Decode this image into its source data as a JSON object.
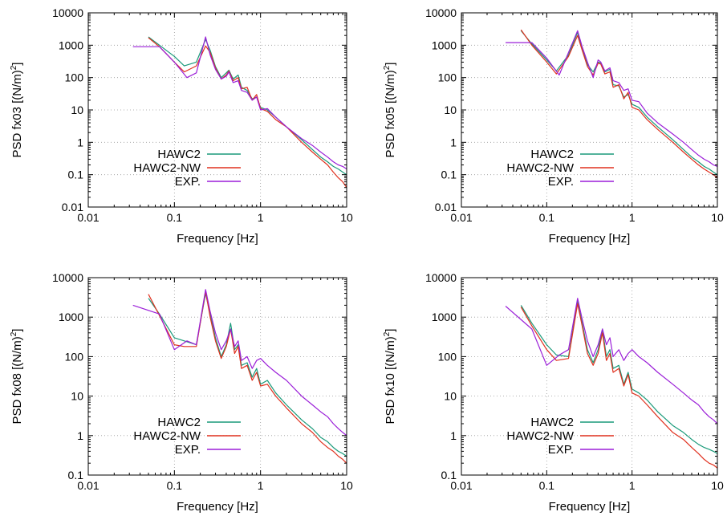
{
  "figure": {
    "xlabel": "Frequency [Hz]"
  },
  "colors": {
    "HAWC2": "#1a9a7a",
    "HAWC2-NW": "#e0301e",
    "EXP.": "#9b1fd8"
  },
  "chart_data": [
    {
      "type": "line",
      "scale": "log-log",
      "grid": true,
      "legend_position": "bottom-left",
      "xlabel": "Frequency [Hz]",
      "ylabel_prefix": "PSD fx03 [(N/m)",
      "ylabel_sup": "2",
      "ylabel_suffix": "]",
      "xlim": [
        0.01,
        10
      ],
      "ylim": [
        0.01,
        10000
      ],
      "xticks": [
        "0.01",
        "0.1",
        "1",
        "10"
      ],
      "yticks": [
        "0.01",
        "0.1",
        "1",
        "10",
        "100",
        "1000",
        "10000"
      ],
      "series": [
        {
          "name": "HAWC2",
          "color": "#1a9a7a",
          "x": [
            0.05,
            0.067,
            0.1,
            0.13,
            0.18,
            0.23,
            0.26,
            0.3,
            0.35,
            0.4,
            0.43,
            0.48,
            0.55,
            0.6,
            0.7,
            0.8,
            0.9,
            1.0,
            1.2,
            1.5,
            2,
            3,
            4,
            5,
            6,
            7,
            8,
            9,
            10
          ],
          "y": [
            1800,
            1000,
            450,
            230,
            300,
            1500,
            700,
            220,
            100,
            140,
            170,
            90,
            120,
            50,
            40,
            22,
            25,
            12,
            10,
            6,
            3,
            1.2,
            0.6,
            0.35,
            0.25,
            0.18,
            0.15,
            0.12,
            0.1
          ]
        },
        {
          "name": "HAWC2-NW",
          "color": "#e0301e",
          "x": [
            0.05,
            0.067,
            0.1,
            0.13,
            0.18,
            0.23,
            0.26,
            0.3,
            0.35,
            0.4,
            0.43,
            0.48,
            0.55,
            0.6,
            0.7,
            0.8,
            0.9,
            1.0,
            1.2,
            1.5,
            2,
            3,
            4,
            5,
            6,
            7,
            8,
            9,
            10
          ],
          "y": [
            1700,
            900,
            300,
            150,
            230,
            950,
            600,
            200,
            90,
            120,
            160,
            80,
            100,
            45,
            50,
            20,
            30,
            11,
            9,
            5,
            3,
            1,
            0.5,
            0.3,
            0.2,
            0.12,
            0.08,
            0.06,
            0.04
          ]
        },
        {
          "name": "EXP.",
          "color": "#9b1fd8",
          "x": [
            0.033,
            0.067,
            0.1,
            0.14,
            0.18,
            0.23,
            0.26,
            0.3,
            0.35,
            0.4,
            0.43,
            0.48,
            0.55,
            0.6,
            0.7,
            0.8,
            0.9,
            1.0,
            1.2,
            1.5,
            2,
            3,
            4,
            5,
            6,
            7,
            8,
            9,
            10
          ],
          "y": [
            900,
            900,
            300,
            100,
            140,
            1800,
            500,
            180,
            90,
            110,
            150,
            70,
            80,
            40,
            35,
            20,
            25,
            10,
            11,
            6,
            3,
            1.3,
            0.8,
            0.5,
            0.35,
            0.25,
            0.2,
            0.18,
            0.15
          ]
        }
      ]
    },
    {
      "type": "line",
      "scale": "log-log",
      "grid": true,
      "legend_position": "bottom-left",
      "xlabel": "Frequency [Hz]",
      "ylabel_prefix": "PSD fx05 [(N/m)",
      "ylabel_sup": "2",
      "ylabel_suffix": "]",
      "xlim": [
        0.01,
        10
      ],
      "ylim": [
        0.01,
        10000
      ],
      "xticks": [
        "0.01",
        "0.1",
        "1",
        "10"
      ],
      "yticks": [
        "0.01",
        "0.1",
        "1",
        "10",
        "100",
        "1000",
        "10000"
      ],
      "series": [
        {
          "name": "HAWC2",
          "color": "#1a9a7a",
          "x": [
            0.05,
            0.067,
            0.1,
            0.13,
            0.18,
            0.23,
            0.26,
            0.3,
            0.35,
            0.4,
            0.43,
            0.48,
            0.55,
            0.6,
            0.7,
            0.8,
            0.9,
            1.0,
            1.2,
            1.5,
            2,
            3,
            4,
            5,
            6,
            7,
            8,
            9,
            10
          ],
          "y": [
            2800,
            1100,
            350,
            160,
            500,
            2500,
            800,
            250,
            150,
            300,
            280,
            150,
            180,
            60,
            55,
            25,
            30,
            15,
            12,
            6,
            3,
            1.2,
            0.6,
            0.35,
            0.25,
            0.18,
            0.15,
            0.12,
            0.1
          ]
        },
        {
          "name": "HAWC2-NW",
          "color": "#e0301e",
          "x": [
            0.05,
            0.067,
            0.1,
            0.13,
            0.18,
            0.23,
            0.26,
            0.3,
            0.35,
            0.4,
            0.43,
            0.48,
            0.55,
            0.6,
            0.7,
            0.8,
            0.9,
            1.0,
            1.2,
            1.5,
            2,
            3,
            4,
            5,
            6,
            7,
            8,
            9,
            10
          ],
          "y": [
            3000,
            1000,
            300,
            130,
            450,
            2000,
            700,
            220,
            120,
            280,
            260,
            130,
            150,
            50,
            60,
            22,
            35,
            12,
            10,
            5,
            2.5,
            1,
            0.5,
            0.3,
            0.2,
            0.15,
            0.12,
            0.1,
            0.08
          ]
        },
        {
          "name": "EXP.",
          "color": "#9b1fd8",
          "x": [
            0.033,
            0.067,
            0.1,
            0.14,
            0.18,
            0.23,
            0.26,
            0.3,
            0.35,
            0.4,
            0.43,
            0.48,
            0.55,
            0.6,
            0.7,
            0.8,
            0.9,
            1.0,
            1.2,
            1.5,
            2,
            3,
            4,
            5,
            6,
            7,
            8,
            9,
            10
          ],
          "y": [
            1200,
            1200,
            400,
            120,
            600,
            2800,
            900,
            300,
            100,
            350,
            300,
            160,
            200,
            80,
            70,
            40,
            45,
            20,
            18,
            8,
            4,
            1.8,
            1,
            0.6,
            0.4,
            0.3,
            0.25,
            0.2,
            0.18
          ]
        }
      ]
    },
    {
      "type": "line",
      "scale": "log-log",
      "grid": true,
      "legend_position": "bottom-left",
      "xlabel": "Frequency [Hz]",
      "ylabel_prefix": "PSD fx08 [(N/m)",
      "ylabel_sup": "2",
      "ylabel_suffix": "]",
      "xlim": [
        0.01,
        10
      ],
      "ylim": [
        0.1,
        10000
      ],
      "xticks": [
        "0.01",
        "0.1",
        "1",
        "10"
      ],
      "yticks": [
        "0.1",
        "1",
        "10",
        "100",
        "1000",
        "10000"
      ],
      "series": [
        {
          "name": "HAWC2",
          "color": "#1a9a7a",
          "x": [
            0.05,
            0.067,
            0.1,
            0.13,
            0.18,
            0.23,
            0.26,
            0.3,
            0.35,
            0.4,
            0.45,
            0.5,
            0.55,
            0.6,
            0.7,
            0.8,
            0.9,
            1.0,
            1.2,
            1.5,
            2,
            3,
            4,
            5,
            6,
            7,
            8,
            9,
            10
          ],
          "y": [
            3000,
            1200,
            300,
            250,
            200,
            4000,
            1200,
            300,
            100,
            200,
            700,
            150,
            200,
            60,
            70,
            30,
            50,
            20,
            25,
            12,
            6,
            2.5,
            1.5,
            0.9,
            0.7,
            0.5,
            0.4,
            0.35,
            0.3
          ]
        },
        {
          "name": "HAWC2-NW",
          "color": "#e0301e",
          "x": [
            0.05,
            0.067,
            0.1,
            0.13,
            0.18,
            0.23,
            0.26,
            0.3,
            0.35,
            0.4,
            0.45,
            0.5,
            0.55,
            0.6,
            0.7,
            0.8,
            0.9,
            1.0,
            1.2,
            1.5,
            2,
            3,
            4,
            5,
            6,
            7,
            8,
            9,
            10
          ],
          "y": [
            3800,
            1100,
            200,
            180,
            180,
            4500,
            1000,
            250,
            90,
            180,
            500,
            120,
            180,
            50,
            60,
            25,
            40,
            18,
            20,
            10,
            5,
            2,
            1.2,
            0.7,
            0.5,
            0.4,
            0.3,
            0.25,
            0.2
          ]
        },
        {
          "name": "EXP.",
          "color": "#9b1fd8",
          "x": [
            0.033,
            0.067,
            0.1,
            0.14,
            0.18,
            0.23,
            0.26,
            0.3,
            0.35,
            0.4,
            0.45,
            0.5,
            0.55,
            0.6,
            0.7,
            0.8,
            0.9,
            1.0,
            1.2,
            1.5,
            2,
            3,
            4,
            5,
            6,
            7,
            8,
            9,
            10
          ],
          "y": [
            2000,
            1200,
            150,
            250,
            200,
            5000,
            1400,
            400,
            150,
            250,
            500,
            180,
            250,
            80,
            100,
            50,
            80,
            90,
            60,
            40,
            25,
            10,
            6,
            4,
            3,
            2,
            1.5,
            1.2,
            1
          ]
        }
      ]
    },
    {
      "type": "line",
      "scale": "log-log",
      "grid": true,
      "legend_position": "bottom-left",
      "xlabel": "Frequency [Hz]",
      "ylabel_prefix": "PSD fx10 [(N/m)",
      "ylabel_sup": "2",
      "ylabel_suffix": "]",
      "xlim": [
        0.01,
        10
      ],
      "ylim": [
        0.1,
        10000
      ],
      "xticks": [
        "0.01",
        "0.1",
        "1",
        "10"
      ],
      "yticks": [
        "0.1",
        "1",
        "10",
        "100",
        "1000",
        "10000"
      ],
      "series": [
        {
          "name": "HAWC2",
          "color": "#1a9a7a",
          "x": [
            0.05,
            0.067,
            0.1,
            0.13,
            0.18,
            0.23,
            0.26,
            0.3,
            0.35,
            0.4,
            0.45,
            0.5,
            0.55,
            0.6,
            0.7,
            0.8,
            0.9,
            1.0,
            1.2,
            1.5,
            2,
            3,
            4,
            5,
            6,
            7,
            8,
            9,
            10
          ],
          "y": [
            2000,
            700,
            200,
            110,
            100,
            2500,
            700,
            150,
            70,
            150,
            500,
            100,
            150,
            50,
            60,
            20,
            40,
            15,
            12,
            8,
            4,
            1.8,
            1.2,
            0.8,
            0.6,
            0.5,
            0.45,
            0.4,
            0.35
          ]
        },
        {
          "name": "HAWC2-NW",
          "color": "#e0301e",
          "x": [
            0.05,
            0.067,
            0.1,
            0.13,
            0.18,
            0.23,
            0.26,
            0.3,
            0.35,
            0.4,
            0.45,
            0.5,
            0.55,
            0.6,
            0.7,
            0.8,
            0.9,
            1.0,
            1.2,
            1.5,
            2,
            3,
            4,
            5,
            6,
            7,
            8,
            9,
            10
          ],
          "y": [
            1800,
            600,
            150,
            80,
            90,
            2200,
            600,
            120,
            60,
            120,
            400,
            80,
            120,
            40,
            50,
            18,
            35,
            12,
            10,
            6,
            3,
            1.2,
            0.8,
            0.5,
            0.35,
            0.25,
            0.2,
            0.18,
            0.15
          ]
        },
        {
          "name": "EXP.",
          "color": "#9b1fd8",
          "x": [
            0.033,
            0.067,
            0.1,
            0.14,
            0.18,
            0.23,
            0.26,
            0.3,
            0.35,
            0.4,
            0.45,
            0.5,
            0.55,
            0.6,
            0.7,
            0.8,
            0.9,
            1.0,
            1.2,
            1.5,
            2,
            3,
            4,
            5,
            6,
            7,
            8,
            9,
            10
          ],
          "y": [
            1900,
            500,
            60,
            110,
            150,
            3000,
            900,
            250,
            100,
            200,
            500,
            200,
            300,
            100,
            150,
            80,
            120,
            150,
            100,
            70,
            40,
            20,
            12,
            8,
            6,
            4,
            3,
            2.5,
            2
          ]
        }
      ]
    }
  ]
}
